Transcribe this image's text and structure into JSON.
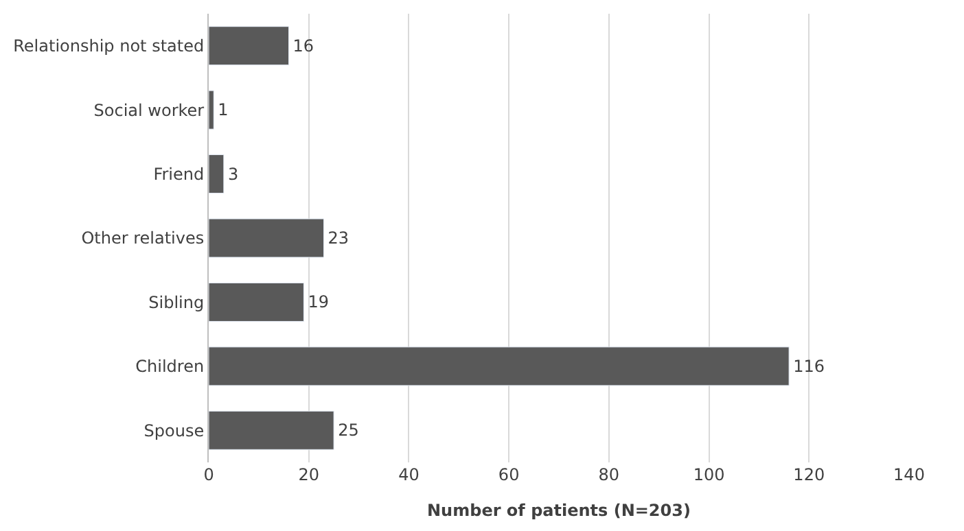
{
  "chart_data": {
    "type": "bar",
    "orientation": "horizontal",
    "categories": [
      "Relationship not stated",
      "Social worker",
      "Friend",
      "Other relatives",
      "Sibling",
      "Children",
      "Spouse"
    ],
    "values": [
      16,
      1,
      3,
      23,
      19,
      116,
      25
    ],
    "color": "#595959",
    "xlabel": "Number of patients (N=203)",
    "xlim": [
      0,
      140
    ],
    "xticks": [
      0,
      20,
      40,
      60,
      80,
      100,
      120,
      140
    ],
    "grid": "x",
    "data_labels": true,
    "legend": false
  }
}
